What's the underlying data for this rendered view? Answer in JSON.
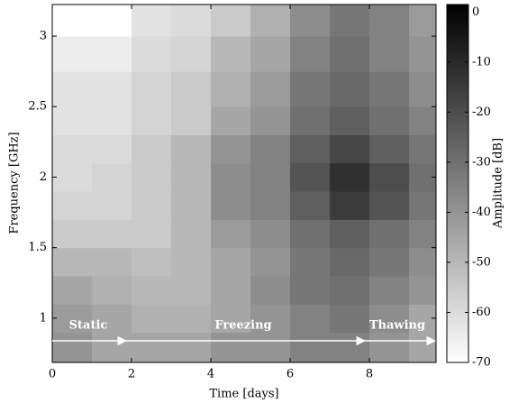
{
  "chart_data": {
    "type": "heatmap",
    "xlabel": "Time [days]",
    "ylabel": "Frequency [GHz]",
    "colorbar_label": "Amplitude [dB]",
    "colormap": "gray_r",
    "xlim": [
      0,
      9.68
    ],
    "ylim": [
      0.686,
      3.224
    ],
    "clim": [
      -70,
      1.5
    ],
    "xticks": [
      0,
      2,
      4,
      6,
      8
    ],
    "yticks": [
      1,
      1.5,
      2,
      2.5,
      3
    ],
    "cticks": [
      0,
      -10,
      -20,
      -30,
      -40,
      -50,
      -60,
      -70
    ],
    "xbins": [
      0,
      1,
      2,
      3,
      4,
      5,
      6,
      7,
      8,
      9,
      9.68
    ],
    "ybins": [
      0.686,
      0.9,
      1.1,
      1.3,
      1.5,
      1.7,
      1.9,
      2.1,
      2.3,
      2.5,
      2.75,
      3.0,
      3.224
    ],
    "values": [
      [
        -40,
        -45,
        -45,
        -45,
        -40,
        -40,
        -35,
        -35,
        -40,
        -45
      ],
      [
        -42,
        -45,
        -48,
        -48,
        -45,
        -40,
        -35,
        -32,
        -38,
        -45
      ],
      [
        -45,
        -48,
        -50,
        -50,
        -45,
        -38,
        -32,
        -30,
        -35,
        -40
      ],
      [
        -50,
        -50,
        -52,
        -50,
        -45,
        -40,
        -32,
        -28,
        -32,
        -38
      ],
      [
        -55,
        -55,
        -55,
        -50,
        -42,
        -38,
        -30,
        -25,
        -30,
        -35
      ],
      [
        -58,
        -58,
        -55,
        -50,
        -38,
        -35,
        -25,
        -15,
        -22,
        -32
      ],
      [
        -60,
        -58,
        -55,
        -50,
        -38,
        -35,
        -22,
        -12,
        -20,
        -30
      ],
      [
        -60,
        -60,
        -55,
        -50,
        -40,
        -35,
        -25,
        -18,
        -25,
        -32
      ],
      [
        -62,
        -62,
        -58,
        -55,
        -45,
        -40,
        -30,
        -25,
        -30,
        -35
      ],
      [
        -62,
        -62,
        -58,
        -55,
        -48,
        -42,
        -32,
        -28,
        -32,
        -38
      ],
      [
        -65,
        -65,
        -60,
        -58,
        -50,
        -45,
        -35,
        -30,
        -35,
        -40
      ],
      [
        -70,
        -70,
        -62,
        -60,
        -55,
        -48,
        -38,
        -32,
        -35,
        -42
      ]
    ],
    "annotations": [
      "Static",
      "Freezing",
      "Thawing"
    ]
  }
}
